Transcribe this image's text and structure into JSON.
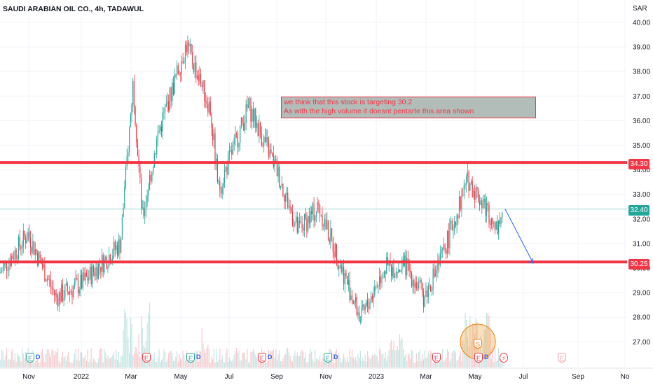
{
  "header": {
    "symbol_title": "SAUDI ARABIAN OIL CO., 4h, TADAWUL",
    "currency": "SAR"
  },
  "annotation": {
    "line1": "we think that this stock is targeting 30.2",
    "line2": "As with the high volume it doesnt pentarte this area shown"
  },
  "price_tags": {
    "resistance": "34.30",
    "current": "32.40",
    "support": "30.25"
  },
  "events": {
    "earnings_label": "E",
    "dividend_label": "D",
    "split_label": "S"
  },
  "colors": {
    "up": "#26a69a",
    "down": "#f23645",
    "level_line": "#f23645",
    "current_line": "#26a69a",
    "arrow": "#2962ff",
    "annotation_bg": "#b2bcb9"
  },
  "chart_data": {
    "type": "candlestick",
    "title": "SAUDI ARABIAN OIL CO., 4h, TADAWUL",
    "ylabel": "SAR",
    "ylim": [
      26.5,
      40.5
    ],
    "y_ticks": [
      "27.00",
      "28.00",
      "29.00",
      "30.00",
      "31.00",
      "32.00",
      "33.00",
      "34.00",
      "35.00",
      "36.00",
      "37.00",
      "38.00",
      "39.00",
      "40.00"
    ],
    "x_ticks": [
      "Nov",
      "2022",
      "Mar",
      "May",
      "Jul",
      "Sep",
      "Nov",
      "2023",
      "Mar",
      "May",
      "Jul",
      "Sep",
      "No"
    ],
    "approx_close_path": [
      {
        "x": "Oct 2021",
        "y": 29.8
      },
      {
        "x": "Nov 2021",
        "y": 31.4
      },
      {
        "x": "Dec 2021",
        "y": 28.8
      },
      {
        "x": "Jan 2022",
        "y": 29.4
      },
      {
        "x": "Feb 2022",
        "y": 31.0
      },
      {
        "x": "Mar 2022",
        "y": 37.6
      },
      {
        "x": "Mar 2022 (mid)",
        "y": 32.0
      },
      {
        "x": "Apr 2022",
        "y": 35.4
      },
      {
        "x": "May 2022",
        "y": 39.1
      },
      {
        "x": "Jun 2022",
        "y": 36.5
      },
      {
        "x": "Jun 2022 (late)",
        "y": 33.2
      },
      {
        "x": "Aug 2022",
        "y": 36.6
      },
      {
        "x": "Sep 2022",
        "y": 34.0
      },
      {
        "x": "Oct 2022",
        "y": 31.5
      },
      {
        "x": "Nov 2022",
        "y": 32.5
      },
      {
        "x": "Dec 2022",
        "y": 27.9
      },
      {
        "x": "Jan 2023",
        "y": 30.0
      },
      {
        "x": "Feb 2023",
        "y": 30.1
      },
      {
        "x": "Mar 2023",
        "y": 28.8
      },
      {
        "x": "Apr 2023",
        "y": 30.4
      },
      {
        "x": "May 2023",
        "y": 33.6
      },
      {
        "x": "May 2023 (late)",
        "y": 31.7
      },
      {
        "x": "Jun 2023",
        "y": 32.4
      }
    ],
    "horizontal_levels": [
      34.3,
      30.25
    ],
    "current_price": 32.4,
    "projection": {
      "from": {
        "x": "Jun 2023",
        "y": 32.4
      },
      "to": {
        "x": "Jul 2023",
        "y": 30.2
      }
    },
    "volume": "histogram at bottom, spikes around Mar 2022 and May 2023",
    "grid": true
  }
}
